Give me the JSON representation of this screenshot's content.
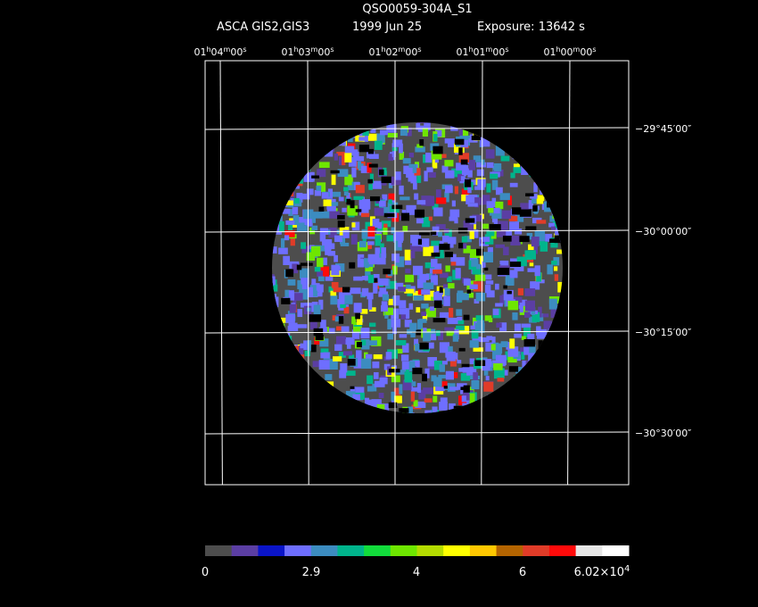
{
  "header": {
    "title": "QSO0059-304A_S1",
    "instrument": "ASCA GIS2,GIS3",
    "date": "1999 Jun 25",
    "exposure": "Exposure: 13642 s"
  },
  "ra_labels": [
    [
      "01",
      "h",
      "04",
      "m",
      "00",
      "s"
    ],
    [
      "01",
      "h",
      "03",
      "m",
      "00",
      "s"
    ],
    [
      "01",
      "h",
      "02",
      "m",
      "00",
      "s"
    ],
    [
      "01",
      "h",
      "01",
      "m",
      "00",
      "s"
    ],
    [
      "01",
      "h",
      "00",
      "m",
      "00",
      "s"
    ]
  ],
  "dec_labels": [
    "−29°45′00″",
    "−30°00′00″",
    "−30°15′00″",
    "−30°30′00″"
  ],
  "colorbar": {
    "colors": [
      "#4d4d4d",
      "#5b3ea3",
      "#0a14c8",
      "#6e6eff",
      "#3c8cc0",
      "#00b48c",
      "#12dc3c",
      "#6ee600",
      "#b4dc00",
      "#ffff00",
      "#ffc800",
      "#b46400",
      "#e03c28",
      "#ff0a0a",
      "#e6e6e6",
      "#ffffff"
    ],
    "labels": [
      "0",
      "2.9",
      "4",
      "6"
    ],
    "last_label": {
      "mantissa": "6.02×10",
      "exponent": "4"
    }
  }
}
